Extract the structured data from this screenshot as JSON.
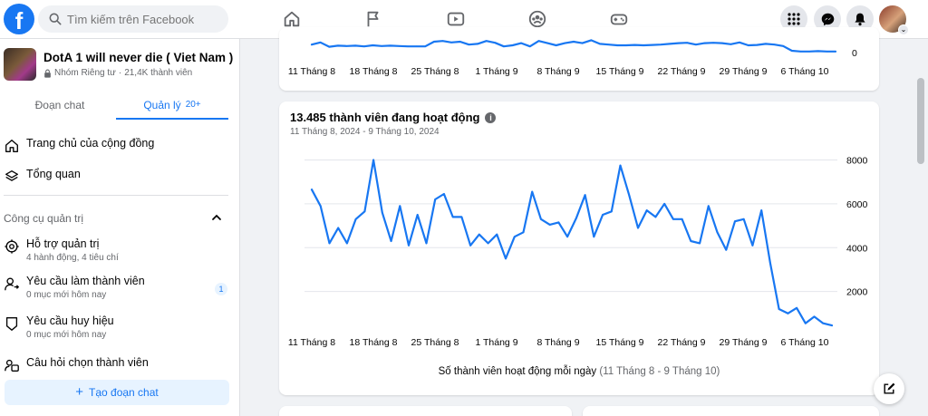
{
  "header": {
    "search_placeholder": "Tìm kiếm trên Facebook",
    "brand_color": "#1877f2",
    "nav_icons": [
      "home-icon",
      "flag-icon",
      "video-icon",
      "groups-icon",
      "gaming-icon"
    ],
    "right_icons": [
      "menu-grid-icon",
      "messenger-icon",
      "notifications-icon",
      "profile-avatar"
    ]
  },
  "sidebar": {
    "group_name": "DotA 1 will never die ( Viet Nam )",
    "group_privacy": "Nhóm Riêng tư",
    "group_members": "21,4K thành viên",
    "tabs": [
      {
        "label": "Đoạn chat",
        "count": ""
      },
      {
        "label": "Quản lý",
        "count": "20+"
      }
    ],
    "nav_items": [
      {
        "label": "Trang chủ của cộng đồng",
        "icon": "home-icon"
      },
      {
        "label": "Tổng quan",
        "icon": "layers-icon"
      }
    ],
    "admin_tools_title": "Công cụ quản trị",
    "admin_items": [
      {
        "label": "Hỗ trợ quản trị",
        "sub": "4 hành động, 4 tiêu chí",
        "icon": "admin-assist-icon",
        "badge": ""
      },
      {
        "label": "Yêu cầu làm thành viên",
        "sub": "0 mục mới hôm nay",
        "icon": "member-request-icon",
        "badge": "1"
      },
      {
        "label": "Yêu cầu huy hiệu",
        "sub": "0 mục mới hôm nay",
        "icon": "badge-shield-icon",
        "badge": ""
      },
      {
        "label": "Câu hỏi chọn thành viên",
        "sub": "",
        "icon": "question-icon",
        "badge": ""
      }
    ],
    "create_chat_label": "Tạo đoạn chat"
  },
  "top_card": {
    "x_ticks": [
      "11 Tháng 8",
      "18 Tháng 8",
      "25 Tháng 8",
      "1 Tháng 9",
      "8 Tháng 9",
      "15 Tháng 9",
      "22 Tháng 9",
      "29 Tháng 9",
      "6 Tháng 10"
    ],
    "y_tick_visible": "0"
  },
  "chart_card": {
    "title": "13.485 thành viên đang hoạt động",
    "date_range": "11 Tháng 8, 2024 - 9 Tháng 10, 2024",
    "caption_main": "Số thành viên hoạt động mỗi ngày",
    "caption_range": "(11 Tháng 8 - 9 Tháng 10)"
  },
  "chart_data": [
    {
      "type": "line",
      "title": "",
      "xlabel": "",
      "ylabel": "",
      "x_tick_labels": [
        "11 Tháng 8",
        "18 Tháng 8",
        "25 Tháng 8",
        "1 Tháng 9",
        "8 Tháng 9",
        "15 Tháng 9",
        "22 Tháng 9",
        "29 Tháng 9",
        "6 Tháng 10"
      ],
      "y_tick_labels": [
        "0"
      ],
      "ylim": [
        0,
        3500
      ],
      "series": [
        {
          "name": "",
          "color": "#1877f2",
          "values": [
            1100,
            1400,
            800,
            950,
            900,
            950,
            850,
            1000,
            900,
            950,
            900,
            850,
            850,
            850,
            1500,
            1600,
            1400,
            1500,
            1100,
            1200,
            1600,
            1350,
            850,
            1000,
            1300,
            850,
            1600,
            1300,
            1000,
            1300,
            1500,
            1300,
            1700,
            1200,
            1100,
            1000,
            1000,
            1050,
            1000,
            1050,
            1100,
            1200,
            1300,
            1350,
            1100,
            1300,
            1350,
            1300,
            1150,
            1400,
            1000,
            1050,
            1200,
            1100,
            900,
            250,
            150,
            150,
            200,
            150,
            150
          ]
        }
      ]
    },
    {
      "type": "line",
      "title": "13.485 thành viên đang hoạt động",
      "subtitle": "11 Tháng 8, 2024 - 9 Tháng 10, 2024",
      "xlabel": "Số thành viên hoạt động mỗi ngày (11 Tháng 8 - 9 Tháng 10)",
      "ylabel": "",
      "x_tick_labels": [
        "11 Tháng 8",
        "18 Tháng 8",
        "25 Tháng 8",
        "1 Tháng 9",
        "8 Tháng 9",
        "15 Tháng 9",
        "22 Tháng 9",
        "29 Tháng 9",
        "6 Tháng 10"
      ],
      "y_ticks": [
        2000,
        4000,
        6000,
        8000
      ],
      "ylim": [
        0,
        8600
      ],
      "grid": true,
      "series": [
        {
          "name": "",
          "color": "#1877f2",
          "values": [
            6650,
            5900,
            4200,
            4900,
            4200,
            5300,
            5650,
            8000,
            5600,
            4300,
            5900,
            4100,
            5500,
            4200,
            6200,
            6450,
            5400,
            5400,
            4100,
            4600,
            4200,
            4600,
            3500,
            4500,
            4700,
            6550,
            5300,
            5050,
            5150,
            4500,
            5350,
            6400,
            4500,
            5500,
            5650,
            7750,
            6400,
            4900,
            5700,
            5400,
            6000,
            5300,
            5300,
            4300,
            4200,
            5900,
            4700,
            3900,
            5200,
            5300,
            4100,
            5700,
            3300,
            1200,
            1000,
            1250,
            550,
            850,
            550,
            450
          ]
        }
      ]
    }
  ]
}
